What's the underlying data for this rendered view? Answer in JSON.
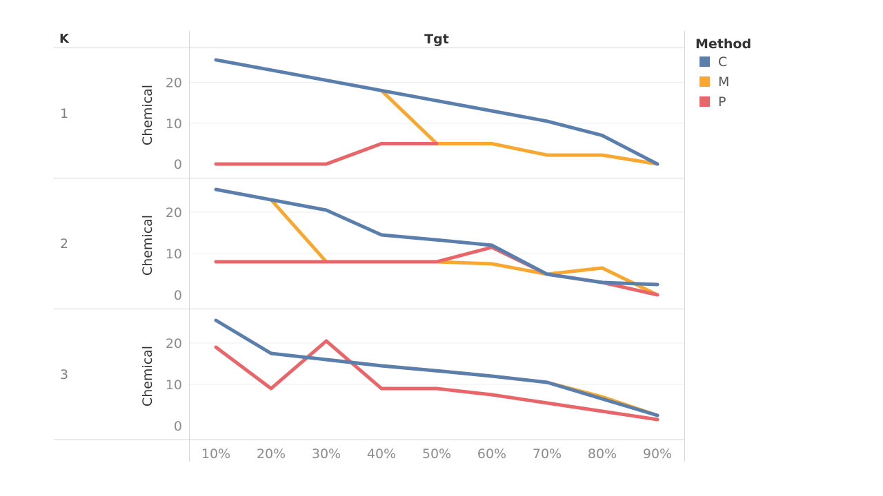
{
  "chart_data": {
    "type": "line",
    "row_header": "K",
    "column_header": "Tgt",
    "ylabel": "Chemical",
    "ylim": [
      -2,
      27
    ],
    "yticks": [
      0,
      10,
      20
    ],
    "categories": [
      "10%",
      "20%",
      "30%",
      "40%",
      "50%",
      "60%",
      "70%",
      "80%",
      "90%"
    ],
    "legend": {
      "title": "Method",
      "position": "top-right",
      "items": [
        {
          "label": "C",
          "color": "#5b7fad"
        },
        {
          "label": "M",
          "color": "#f8a831"
        },
        {
          "label": "P",
          "color": "#e8656a"
        }
      ]
    },
    "panels": [
      {
        "k": "1",
        "series": [
          {
            "name": "C",
            "color": "#5b7fad",
            "values": [
              25.5,
              23,
              20.5,
              18,
              15.5,
              13,
              10.5,
              7,
              0
            ]
          },
          {
            "name": "M",
            "color": "#f8a831",
            "values": [
              null,
              null,
              null,
              18,
              5,
              5,
              2.2,
              2.2,
              0
            ]
          },
          {
            "name": "P",
            "color": "#e8656a",
            "values": [
              0,
              0,
              0,
              5,
              5,
              null,
              null,
              null,
              null
            ]
          }
        ]
      },
      {
        "k": "2",
        "series": [
          {
            "name": "C",
            "color": "#5b7fad",
            "values": [
              25.5,
              23,
              20.5,
              14.5,
              13.3,
              12,
              5,
              3,
              2.5
            ]
          },
          {
            "name": "M",
            "color": "#f8a831",
            "values": [
              null,
              23,
              8,
              8,
              8,
              7.5,
              5,
              6.5,
              0
            ]
          },
          {
            "name": "P",
            "color": "#e8656a",
            "values": [
              8,
              8,
              8,
              8,
              8,
              11.5,
              5,
              3,
              0
            ]
          }
        ]
      },
      {
        "k": "3",
        "series": [
          {
            "name": "C",
            "color": "#5b7fad",
            "values": [
              25.5,
              17.5,
              16,
              14.5,
              13.3,
              12,
              10.5,
              6.5,
              2.5
            ]
          },
          {
            "name": "M",
            "color": "#f8a831",
            "values": [
              null,
              null,
              16,
              14.5,
              13.3,
              12,
              10.5,
              7,
              2.5
            ]
          },
          {
            "name": "P",
            "color": "#e8656a",
            "values": [
              19,
              9,
              20.5,
              9,
              9,
              7.5,
              5.5,
              3.5,
              1.5
            ]
          }
        ]
      }
    ]
  }
}
